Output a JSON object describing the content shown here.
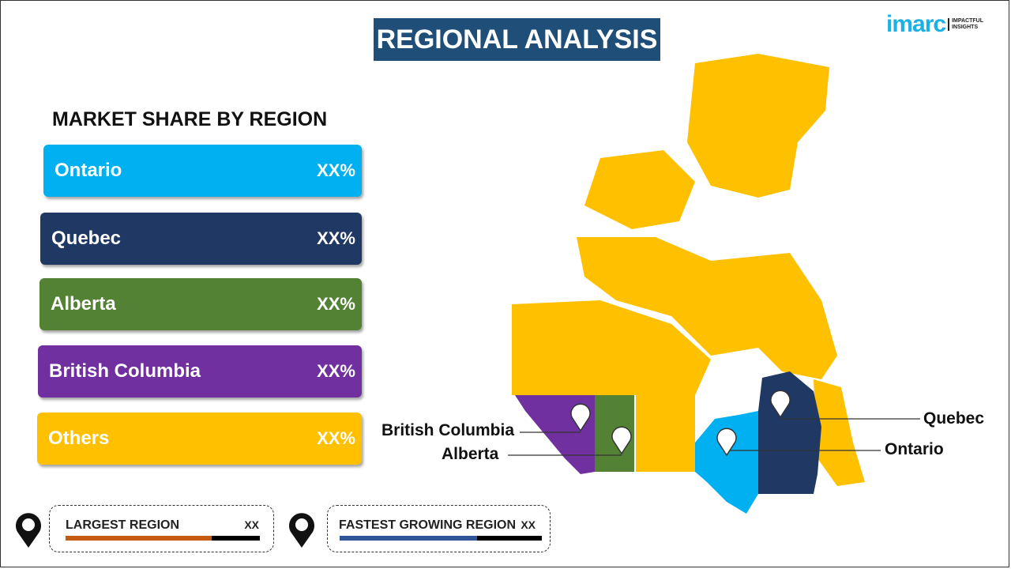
{
  "title": "REGIONAL ANALYSIS",
  "logo": {
    "brand": "imarc",
    "tagline_1": "IMPACTFUL",
    "tagline_2": "INSIGHTS"
  },
  "subtitle": "MARKET SHARE BY REGION",
  "regions": [
    {
      "label": "Ontario",
      "value": "XX%",
      "color": "#00b0f0"
    },
    {
      "label": "Quebec",
      "value": "XX%",
      "color": "#1f3864"
    },
    {
      "label": "Alberta",
      "value": "XX%",
      "color": "#548235"
    },
    {
      "label": "British Columbia",
      "value": "XX%",
      "color": "#7030a0"
    },
    {
      "label": "Others",
      "value": "XX%",
      "color": "#ffc000"
    }
  ],
  "largest": {
    "label": "LARGEST REGION",
    "value": "XX",
    "fill_percent": 75,
    "color": "#c55a11"
  },
  "fastest": {
    "label": "FASTEST GROWING REGION",
    "value": "XX",
    "fill_percent": 68,
    "color": "#2f5597"
  },
  "map_labels": {
    "bc": "British Columbia",
    "alberta": "Alberta",
    "quebec": "Quebec",
    "ontario": "Ontario"
  }
}
